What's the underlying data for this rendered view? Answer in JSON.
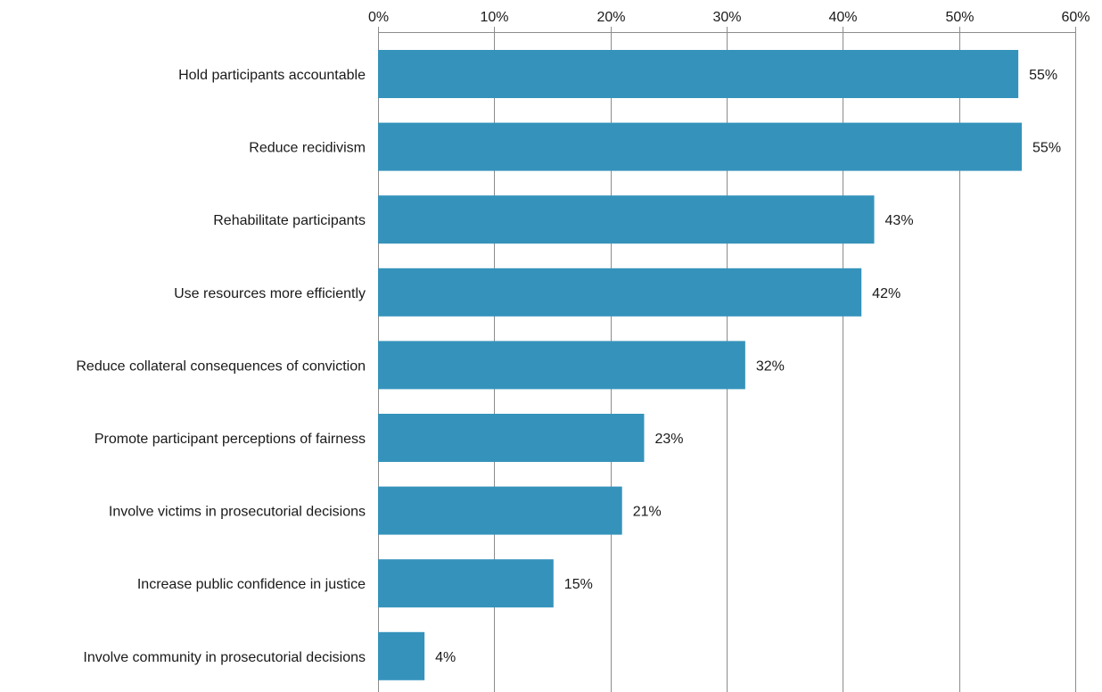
{
  "colors": {
    "bar": "#3593bb",
    "grid": "#8c8c8c",
    "text": "#1a1a1a"
  },
  "chart_data": {
    "type": "bar",
    "orientation": "horizontal",
    "title": "",
    "xlabel": "",
    "ylabel": "",
    "xlim": [
      0,
      60
    ],
    "x_ticks": [
      0,
      10,
      20,
      30,
      40,
      50,
      60
    ],
    "x_tick_labels": [
      "0%",
      "10%",
      "20%",
      "30%",
      "40%",
      "50%",
      "60%"
    ],
    "x_axis_position": "top",
    "grid": true,
    "legend": "none",
    "categories": [
      "Hold participants accountable",
      "Reduce recidivism",
      "Rehabilitate participants",
      "Use resources more efficiently",
      "Reduce collateral consequences of conviction",
      "Promote participant perceptions of fairness",
      "Involve victims in prosecutorial decisions",
      "Increase public confidence in justice",
      "Involve community in prosecutorial decisions"
    ],
    "values": [
      55.1,
      55.4,
      42.7,
      41.6,
      31.6,
      22.9,
      21.0,
      15.1,
      4.0
    ],
    "data_labels": [
      "55%",
      "55%",
      "43%",
      "42%",
      "32%",
      "23%",
      "21%",
      "15%",
      "4%"
    ]
  }
}
